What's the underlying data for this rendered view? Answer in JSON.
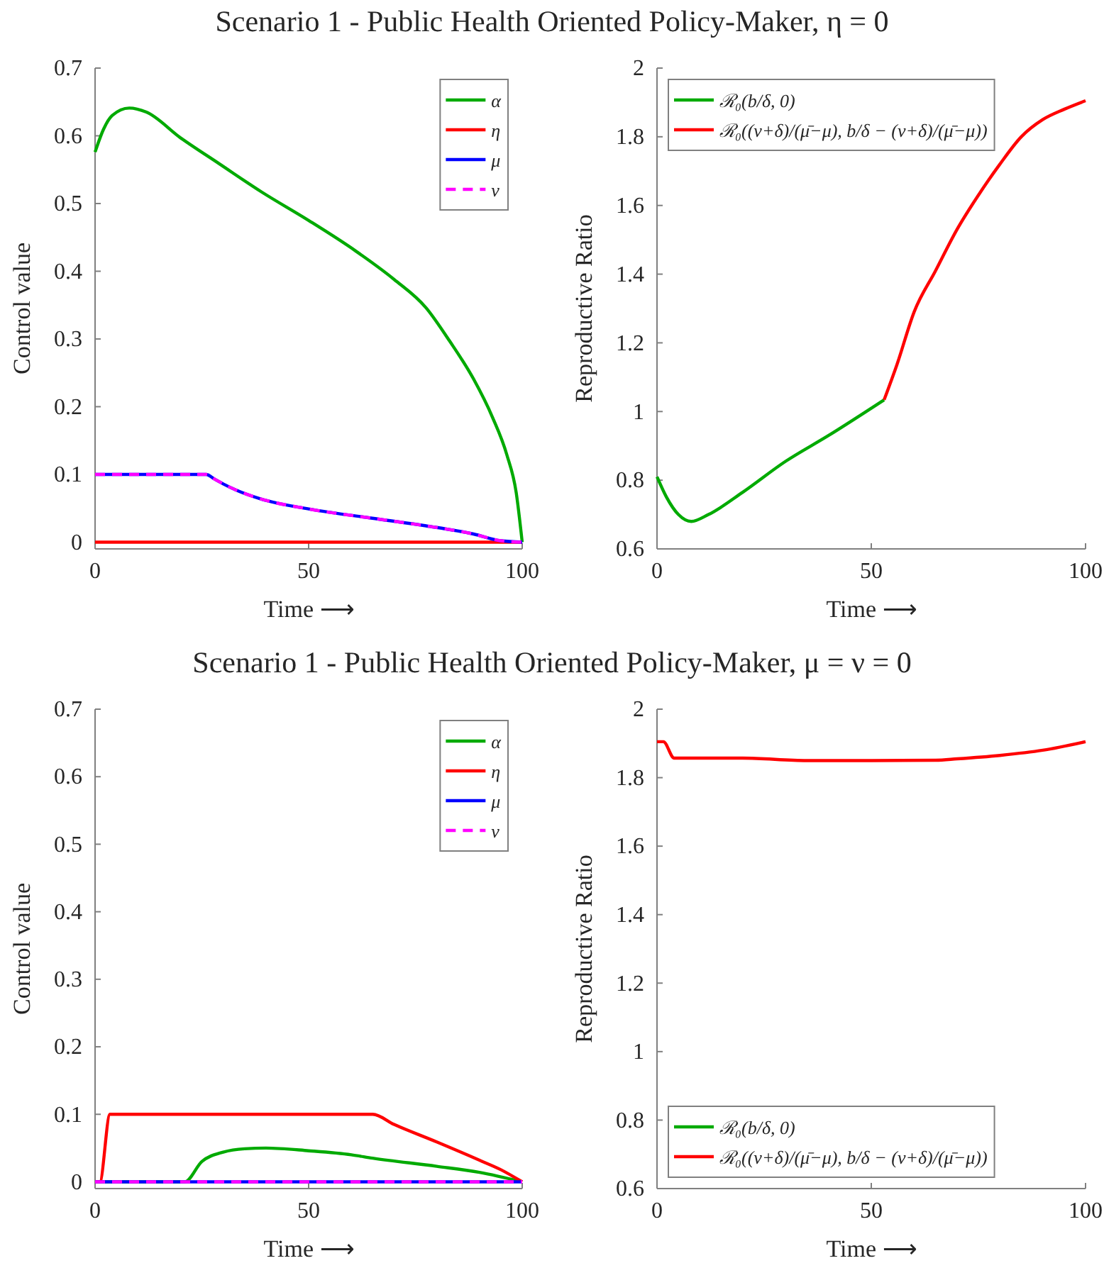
{
  "chart_data": [
    {
      "type": "line",
      "title": "Scenario 1 - Public Health Oriented Policy-Maker, η = 0",
      "xlabel": "Time ⟶",
      "ylabel": "Control value",
      "xlim": [
        0,
        100
      ],
      "xticks": [
        0,
        50,
        100
      ],
      "ylim": [
        -0.01,
        0.7
      ],
      "yticks": [
        0,
        0.1,
        0.2,
        0.3,
        0.4,
        0.5,
        0.6,
        0.7
      ],
      "legend": "top right",
      "grid": false,
      "series": [
        {
          "name": "α",
          "color": "#00aa00",
          "x": [
            0,
            2,
            4,
            8,
            12,
            20,
            29,
            39,
            50,
            61,
            70,
            77.5,
            83,
            88.6,
            93,
            96.4,
            98.6,
            100
          ],
          "values": [
            0.576,
            0.61,
            0.63,
            0.641,
            0.635,
            0.597,
            0.559,
            0.517,
            0.475,
            0.43,
            0.388,
            0.346,
            0.297,
            0.241,
            0.185,
            0.129,
            0.073,
            0
          ]
        },
        {
          "name": "η",
          "color": "#ff0000",
          "x": [
            0,
            100
          ],
          "values": [
            0,
            0
          ]
        },
        {
          "name": "μ",
          "color": "#0000ff",
          "x": [
            0,
            26,
            28,
            30,
            33,
            38.7,
            50,
            66.4,
            77.5,
            88.6,
            95,
            100
          ],
          "values": [
            0.1,
            0.1,
            0.093,
            0.086,
            0.077,
            0.064,
            0.049,
            0.034,
            0.024,
            0.012,
            0.002,
            0
          ]
        },
        {
          "name": "ν",
          "color": "#ff00ff",
          "line_style": "dashed",
          "x": [
            0,
            26,
            28,
            30,
            33,
            38.7,
            50,
            66.4,
            77.5,
            88.6,
            95,
            100
          ],
          "values": [
            0.1,
            0.1,
            0.093,
            0.086,
            0.077,
            0.064,
            0.049,
            0.034,
            0.024,
            0.012,
            0.002,
            0
          ]
        }
      ]
    },
    {
      "type": "line",
      "xlabel": "Time ⟶",
      "ylabel": "Reproductive Ratio",
      "xlim": [
        0,
        100
      ],
      "xticks": [
        0,
        50,
        100
      ],
      "ylim": [
        0.6,
        2
      ],
      "yticks": [
        0.6,
        0.8,
        1,
        1.2,
        1.4,
        1.6,
        1.8,
        2
      ],
      "legend": "top left",
      "grid": false,
      "series": [
        {
          "name": "ℛ₀(b/δ, 0)",
          "color": "#00aa00",
          "x": [
            0,
            2.2,
            5,
            8,
            12,
            20,
            30,
            40,
            53
          ],
          "values": [
            0.81,
            0.751,
            0.7,
            0.68,
            0.7,
            0.765,
            0.855,
            0.93,
            1.034
          ]
        },
        {
          "name": "ℛ₀((ν+δ)/(μ̄−μ), b/δ − (ν+δ)/(μ̄−μ))",
          "color": "#ff0000",
          "x": [
            53,
            56,
            60,
            65,
            70,
            75,
            80,
            85,
            90,
            95,
            100
          ],
          "values": [
            1.034,
            1.137,
            1.29,
            1.41,
            1.53,
            1.63,
            1.72,
            1.8,
            1.85,
            1.88,
            1.905
          ]
        }
      ]
    },
    {
      "type": "line",
      "title": "Scenario 1 - Public Health Oriented Policy-Maker, μ = ν = 0",
      "xlabel": "Time ⟶",
      "ylabel": "Control value",
      "xlim": [
        0,
        100
      ],
      "xticks": [
        0,
        50,
        100
      ],
      "ylim": [
        -0.01,
        0.7
      ],
      "yticks": [
        0,
        0.1,
        0.2,
        0.3,
        0.4,
        0.5,
        0.6,
        0.7
      ],
      "legend": "top right",
      "grid": false,
      "series": [
        {
          "name": "α",
          "color": "#00aa00",
          "x": [
            0,
            21,
            25,
            30,
            35,
            40,
            50,
            60,
            65,
            80,
            90,
            100
          ],
          "values": [
            0,
            0,
            0.03,
            0.044,
            0.049,
            0.05,
            0.046,
            0.04,
            0.035,
            0.023,
            0.014,
            0
          ]
        },
        {
          "name": "η",
          "color": "#ff0000",
          "x": [
            0,
            1.1,
            3.5,
            65,
            70,
            80,
            90,
            95,
            100
          ],
          "values": [
            0,
            0,
            0.1,
            0.1,
            0.085,
            0.059,
            0.032,
            0.018,
            0
          ]
        },
        {
          "name": "μ",
          "color": "#0000ff",
          "x": [
            0,
            100
          ],
          "values": [
            0,
            0
          ]
        },
        {
          "name": "ν",
          "color": "#ff00ff",
          "line_style": "dashed",
          "x": [
            0,
            100
          ],
          "values": [
            0,
            0
          ]
        }
      ]
    },
    {
      "type": "line",
      "xlabel": "Time ⟶",
      "ylabel": "Reproductive Ratio",
      "xlim": [
        0,
        100
      ],
      "xticks": [
        0,
        50,
        100
      ],
      "ylim": [
        0.6,
        2
      ],
      "yticks": [
        0.6,
        0.8,
        1,
        1.2,
        1.4,
        1.6,
        1.8,
        2
      ],
      "legend": "bottom left",
      "grid": false,
      "series": [
        {
          "name": "ℛ₀(b/δ, 0)",
          "color": "#00aa00"
        },
        {
          "name": "ℛ₀((ν+δ)/(μ̄−μ), b/δ − (ν+δ)/(μ̄−μ))",
          "color": "#ff0000",
          "x": [
            0,
            1.5,
            4,
            20,
            35,
            50,
            65,
            70,
            80,
            90,
            100
          ],
          "values": [
            1.905,
            1.905,
            1.857,
            1.857,
            1.85,
            1.85,
            1.851,
            1.855,
            1.865,
            1.88,
            1.905
          ]
        }
      ]
    }
  ]
}
